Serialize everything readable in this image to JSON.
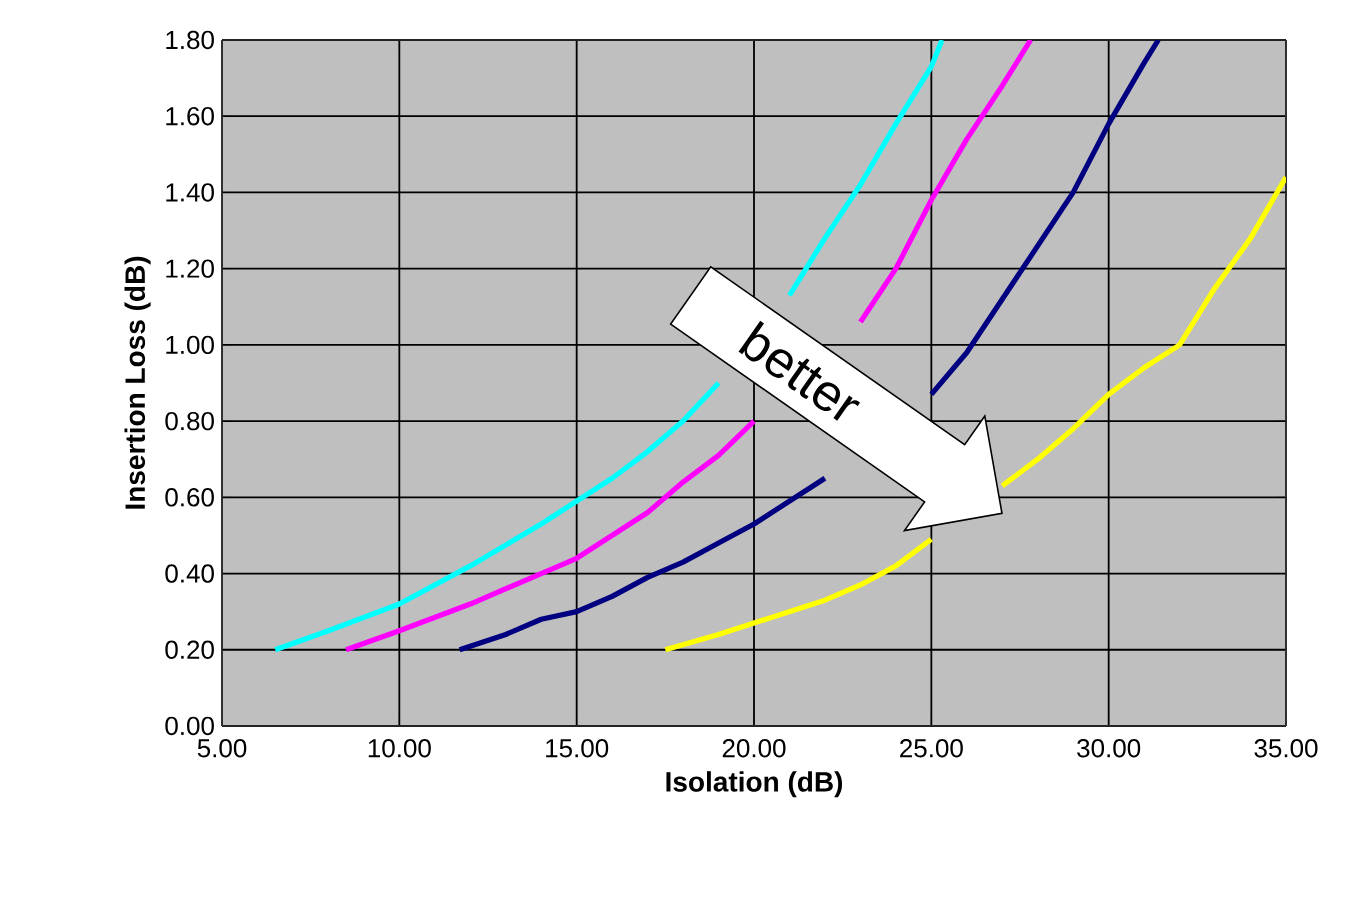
{
  "chart_data": {
    "type": "line",
    "xlabel": "Isolation (dB)",
    "ylabel": "Insertion Loss (dB)",
    "xlim": [
      5,
      35
    ],
    "ylim": [
      0,
      1.8
    ],
    "xticks": [
      {
        "value": 5,
        "label": "5.00"
      },
      {
        "value": 10,
        "label": "10.00"
      },
      {
        "value": 15,
        "label": "15.00"
      },
      {
        "value": 20,
        "label": "20.00"
      },
      {
        "value": 25,
        "label": "25.00"
      },
      {
        "value": 30,
        "label": "30.00"
      },
      {
        "value": 35,
        "label": "35.00"
      }
    ],
    "yticks": [
      {
        "value": 0,
        "label": "0.00"
      },
      {
        "value": 0.2,
        "label": "0.20"
      },
      {
        "value": 0.4,
        "label": "0.40"
      },
      {
        "value": 0.6,
        "label": "0.60"
      },
      {
        "value": 0.8,
        "label": "0.80"
      },
      {
        "value": 1.0,
        "label": "1.00"
      },
      {
        "value": 1.2,
        "label": "1.20"
      },
      {
        "value": 1.4,
        "label": "1.40"
      },
      {
        "value": 1.6,
        "label": "1.60"
      },
      {
        "value": 1.8,
        "label": "1.80"
      }
    ],
    "grid": true,
    "marker": "none",
    "line_style": "solid",
    "annotations": [
      "better"
    ],
    "series": [
      {
        "color": "#00ffff",
        "x": [
          6.5,
          8,
          10,
          12,
          14,
          15,
          16,
          17,
          18,
          19,
          20,
          21,
          22,
          23,
          24,
          25,
          25.3
        ],
        "values": [
          0.2,
          0.25,
          0.32,
          0.42,
          0.53,
          0.59,
          0.65,
          0.72,
          0.8,
          0.9,
          null,
          1.13,
          1.28,
          1.42,
          1.58,
          1.73,
          1.8
        ]
      },
      {
        "color": "#ff00ff",
        "x": [
          8.5,
          10,
          12,
          14,
          15,
          16,
          17,
          18,
          19,
          20,
          21,
          22,
          23,
          24,
          25,
          26,
          27,
          27.8
        ],
        "values": [
          0.2,
          0.25,
          0.32,
          0.4,
          0.44,
          0.5,
          0.56,
          0.64,
          0.71,
          0.8,
          null,
          null,
          1.06,
          1.2,
          1.38,
          1.54,
          1.68,
          1.8
        ]
      },
      {
        "color": "#000080",
        "x": [
          11.7,
          13,
          14,
          15,
          16,
          17,
          18,
          19,
          20,
          21,
          22,
          23,
          24,
          25,
          26,
          27,
          28,
          29,
          30,
          31,
          31.4
        ],
        "values": [
          0.2,
          0.24,
          0.28,
          0.3,
          0.34,
          0.39,
          0.43,
          0.48,
          0.53,
          0.59,
          0.65,
          null,
          null,
          0.87,
          0.98,
          1.12,
          1.26,
          1.4,
          1.58,
          1.74,
          1.8
        ]
      },
      {
        "color": "#ffff00",
        "x": [
          17.5,
          19,
          20,
          21,
          22,
          23,
          24,
          25,
          26,
          27,
          28,
          29,
          30,
          31,
          32,
          33,
          34,
          35
        ],
        "values": [
          0.2,
          0.24,
          0.27,
          0.3,
          0.33,
          0.37,
          0.42,
          0.49,
          null,
          0.63,
          0.7,
          0.78,
          0.87,
          0.94,
          1.0,
          1.15,
          1.28,
          1.44
        ]
      }
    ]
  }
}
